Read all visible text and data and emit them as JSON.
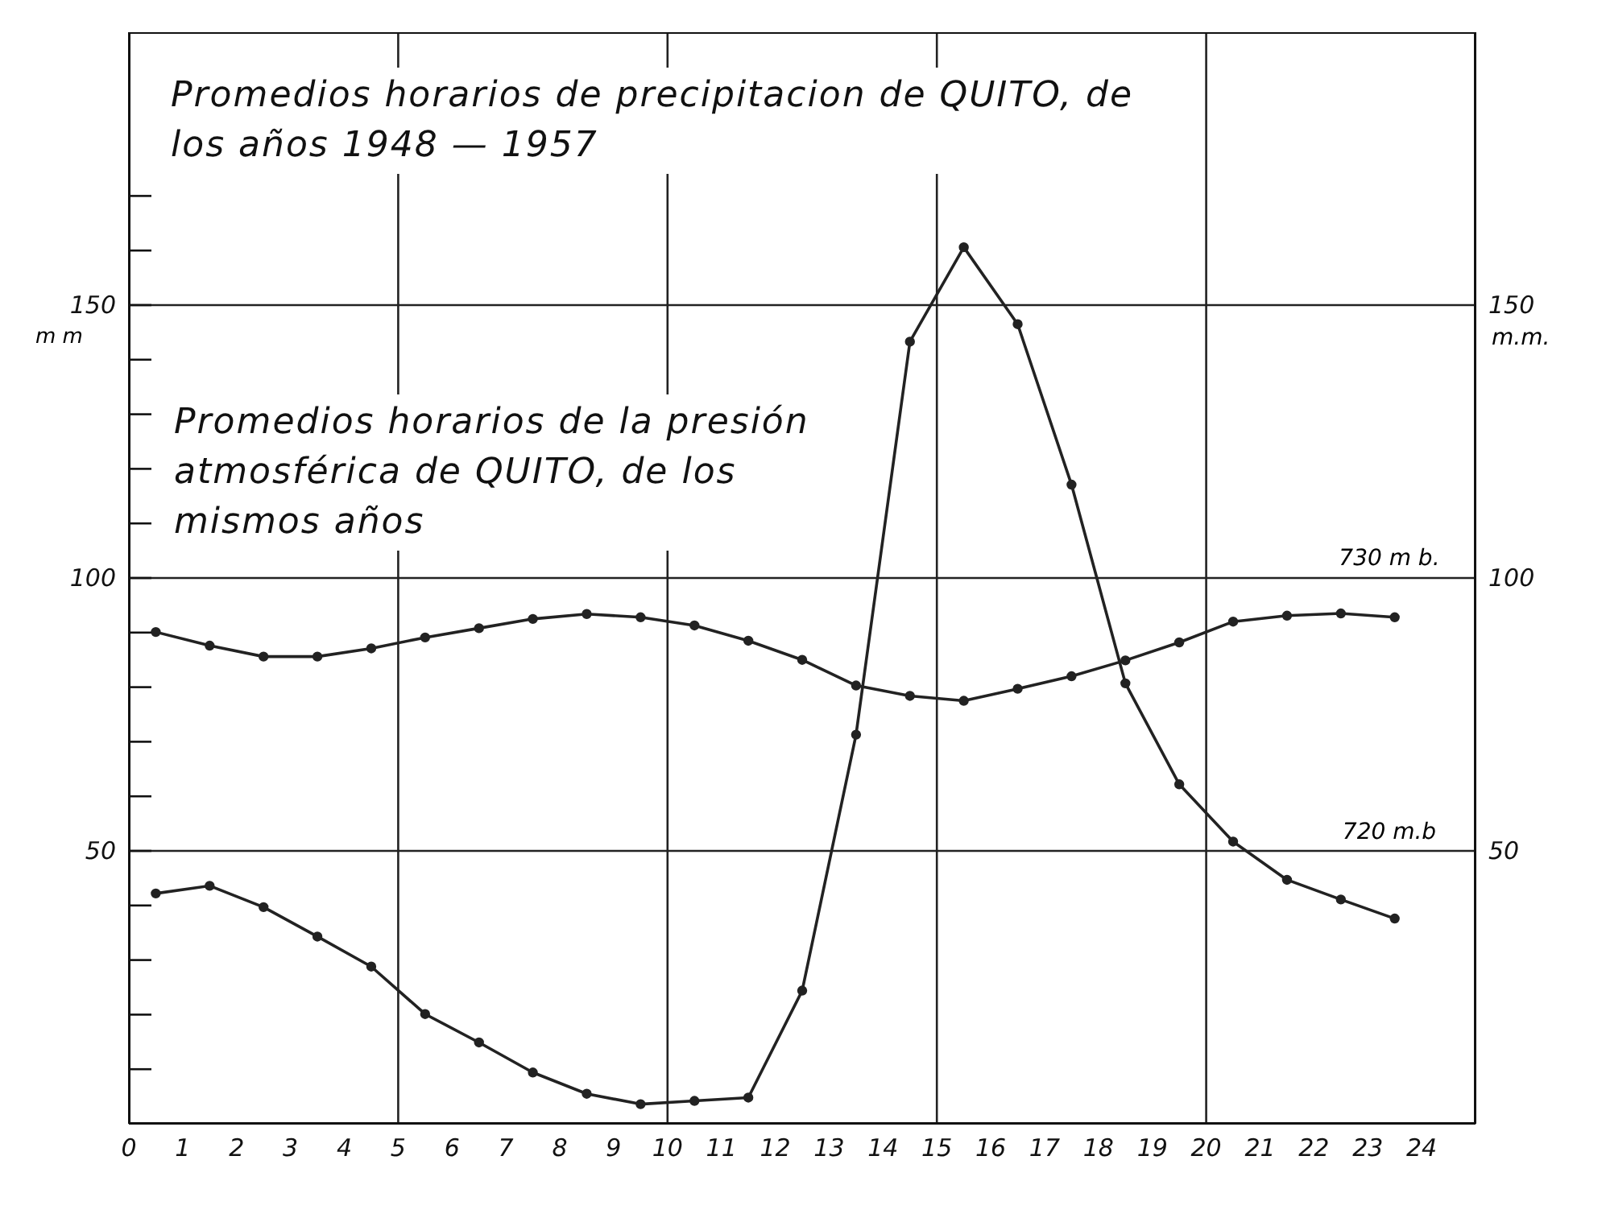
{
  "chart_data": {
    "type": "line",
    "title": "Promedios horarios de precipitacion de QUITO, de los años 1948 — 1957",
    "subtitle": "Promedios horarios de la presión atmosférica de QUITO, de los mismos años",
    "ylabel": "m m",
    "y2label": "m.m.",
    "x": [
      0.5,
      1.5,
      2.5,
      3.5,
      4.5,
      5.5,
      6.5,
      7.5,
      8.5,
      9.5,
      10.5,
      11.5,
      12.5,
      13.5,
      14.5,
      15.5,
      16.5,
      17.5,
      18.5,
      19.5,
      20.5,
      21.5,
      22.5,
      23.5
    ],
    "series": [
      {
        "color": "#222222",
        "values": [
          42.2,
          43.6,
          39.7,
          34.3,
          28.8,
          20.1,
          14.9,
          9.4,
          5.5,
          3.6,
          4.2,
          4.8,
          24.4,
          71.3,
          143.3,
          160.6,
          146.5,
          117.1,
          80.7,
          62.2,
          51.7,
          44.7,
          41.1,
          37.6
        ]
      },
      {
        "color": "#222222",
        "values": [
          90.1,
          87.6,
          85.6,
          85.6,
          87.1,
          89.1,
          90.8,
          92.5,
          93.4,
          92.8,
          91.3,
          88.5,
          85.0,
          80.3,
          78.4,
          77.5,
          79.7,
          82.0,
          84.9,
          88.2,
          92.0,
          93.1,
          93.5,
          92.8
        ]
      }
    ],
    "xlim": [
      0,
      25
    ],
    "xticks": [
      0,
      1,
      2,
      3,
      4,
      5,
      6,
      7,
      8,
      9,
      10,
      11,
      12,
      13,
      14,
      15,
      16,
      17,
      18,
      19,
      20,
      21,
      22,
      23,
      24
    ],
    "ylim": [
      0,
      200
    ],
    "yticks": [
      {
        "value": 10,
        "label": null
      },
      {
        "value": 20,
        "label": null
      },
      {
        "value": 30,
        "label": null
      },
      {
        "value": 40,
        "label": null
      },
      50,
      {
        "value": 60,
        "label": null
      },
      {
        "value": 70,
        "label": null
      },
      {
        "value": 80,
        "label": null
      },
      {
        "value": 90,
        "label": null
      },
      100,
      {
        "value": 110,
        "label": null
      },
      {
        "value": 120,
        "label": null
      },
      {
        "value": 130,
        "label": null
      },
      {
        "value": 140,
        "label": null
      },
      150,
      {
        "value": 160,
        "label": null
      },
      {
        "value": 170,
        "label": null
      }
    ],
    "y2lim": [
      0,
      200
    ],
    "y2ticks": [
      50,
      100,
      150
    ],
    "ref_lines": [
      {
        "axis": "x",
        "value": 5
      },
      {
        "axis": "x",
        "value": 10
      },
      {
        "axis": "x",
        "value": 15
      },
      {
        "axis": "x",
        "value": 20
      },
      {
        "axis": "y",
        "value": 50
      },
      {
        "axis": "y",
        "value": 100
      },
      {
        "axis": "y",
        "value": 150
      }
    ],
    "annotations": [
      {
        "text": "730 m b.",
        "x": 23.4,
        "y": 100
      },
      {
        "text": "720 m.b",
        "x": 23.4,
        "y": 50
      }
    ],
    "grid": false,
    "marker": "circle",
    "line_style": "solid"
  }
}
